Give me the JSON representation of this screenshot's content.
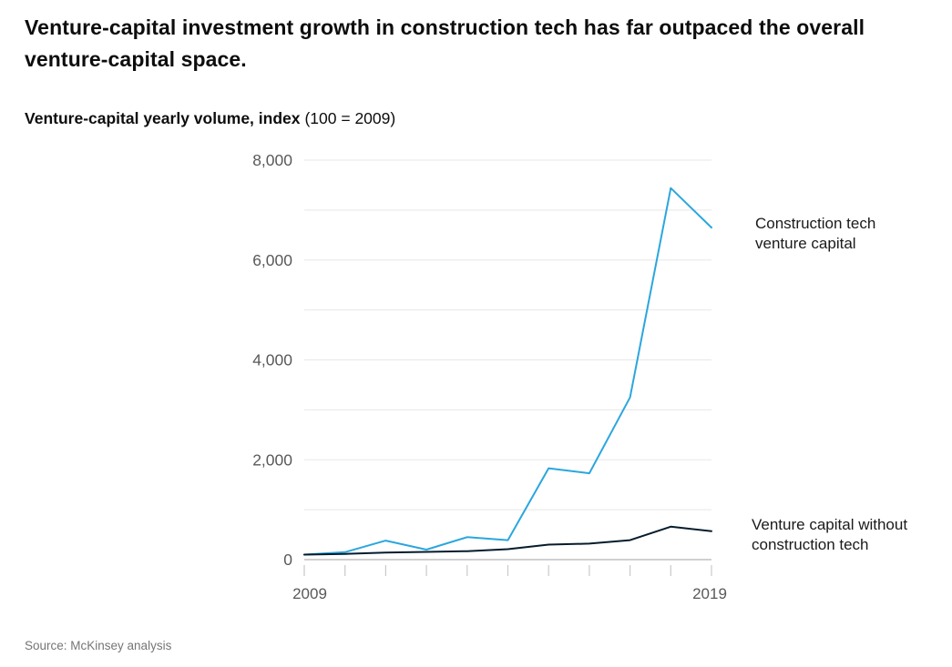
{
  "header": {
    "title": "Venture-capital investment growth in construction tech has far outpaced the overall venture-capital space.",
    "subtitle_bold": "Venture-capital yearly volume, index",
    "subtitle_regular": "(100 = 2009)"
  },
  "chart_data": {
    "type": "line",
    "title": "Venture-capital yearly volume, index (100 = 2009)",
    "x": [
      2009,
      2010,
      2011,
      2012,
      2013,
      2014,
      2015,
      2016,
      2017,
      2018,
      2019
    ],
    "series": [
      {
        "name": "Construction tech venture capital",
        "color": "#2ba6de",
        "values": [
          100,
          150,
          380,
          200,
          450,
          390,
          1830,
          1730,
          3250,
          7440,
          6650
        ]
      },
      {
        "name": "Venture capital without construction tech",
        "color": "#051c2c",
        "values": [
          100,
          115,
          140,
          155,
          170,
          210,
          300,
          320,
          390,
          660,
          570
        ]
      }
    ],
    "ylim": [
      0,
      8000
    ],
    "gridline_step": 1000,
    "y_tick_values": [
      0,
      2000,
      4000,
      6000,
      8000
    ],
    "y_tick_labels": [
      "0",
      "2,000",
      "4,000",
      "6,000",
      "8,000"
    ],
    "x_tick_labels": [
      "2009",
      "2019"
    ],
    "xlabel": "",
    "ylabel": "",
    "grid": "horizontal",
    "legend_position": "right-annotations"
  },
  "footer": {
    "source": "Source: McKinsey analysis"
  }
}
